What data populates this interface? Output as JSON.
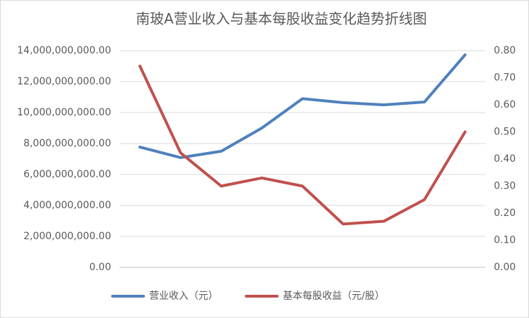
{
  "chart_data": {
    "type": "line",
    "title": "南玻A营业收入与基本每股收益变化趋势折线图",
    "categories": [
      null,
      null,
      null,
      null,
      null,
      null,
      null,
      null,
      null
    ],
    "series": [
      {
        "name": "营业收入（元）",
        "color": "#4f81bd",
        "values": [
          7770000000,
          7090000000,
          7500000000,
          9000000000,
          10900000000,
          10640000000,
          10500000000,
          10680000000,
          13730000000
        ]
      },
      {
        "name": "基本每股收益（元/股）",
        "color": "#c0504d",
        "axis": "y2",
        "values": [
          0.743,
          0.423,
          0.3,
          0.33,
          0.3,
          0.16,
          0.17,
          0.25,
          0.5
        ]
      }
    ],
    "ylim": [
      0,
      14000000000
    ],
    "yticks": [
      {
        "value": 0,
        "label": "0.00"
      },
      {
        "value": 2000000000,
        "label": "2,000,000,000.00"
      },
      {
        "value": 4000000000,
        "label": "4,000,000,000.00"
      },
      {
        "value": 6000000000,
        "label": "6,000,000,000.00"
      },
      {
        "value": 8000000000,
        "label": "8,000,000,000.00"
      },
      {
        "value": 10000000000,
        "label": "10,000,000,000.00"
      },
      {
        "value": 12000000000,
        "label": "12,000,000,000.00"
      },
      {
        "value": 14000000000,
        "label": "14,000,000,000.00"
      }
    ],
    "y2lim": [
      0,
      0.8
    ],
    "y2ticks": [
      {
        "value": 0,
        "label": "0.00"
      },
      {
        "value": 0.1,
        "label": "0.10"
      },
      {
        "value": 0.2,
        "label": "0.20"
      },
      {
        "value": 0.3,
        "label": "0.30"
      },
      {
        "value": 0.4,
        "label": "0.40"
      },
      {
        "value": 0.5,
        "label": "0.50"
      },
      {
        "value": 0.6,
        "label": "0.60"
      },
      {
        "value": 0.7,
        "label": "0.70"
      },
      {
        "value": 0.8,
        "label": "0.80"
      }
    ],
    "grid": true,
    "legend": "bottom"
  }
}
